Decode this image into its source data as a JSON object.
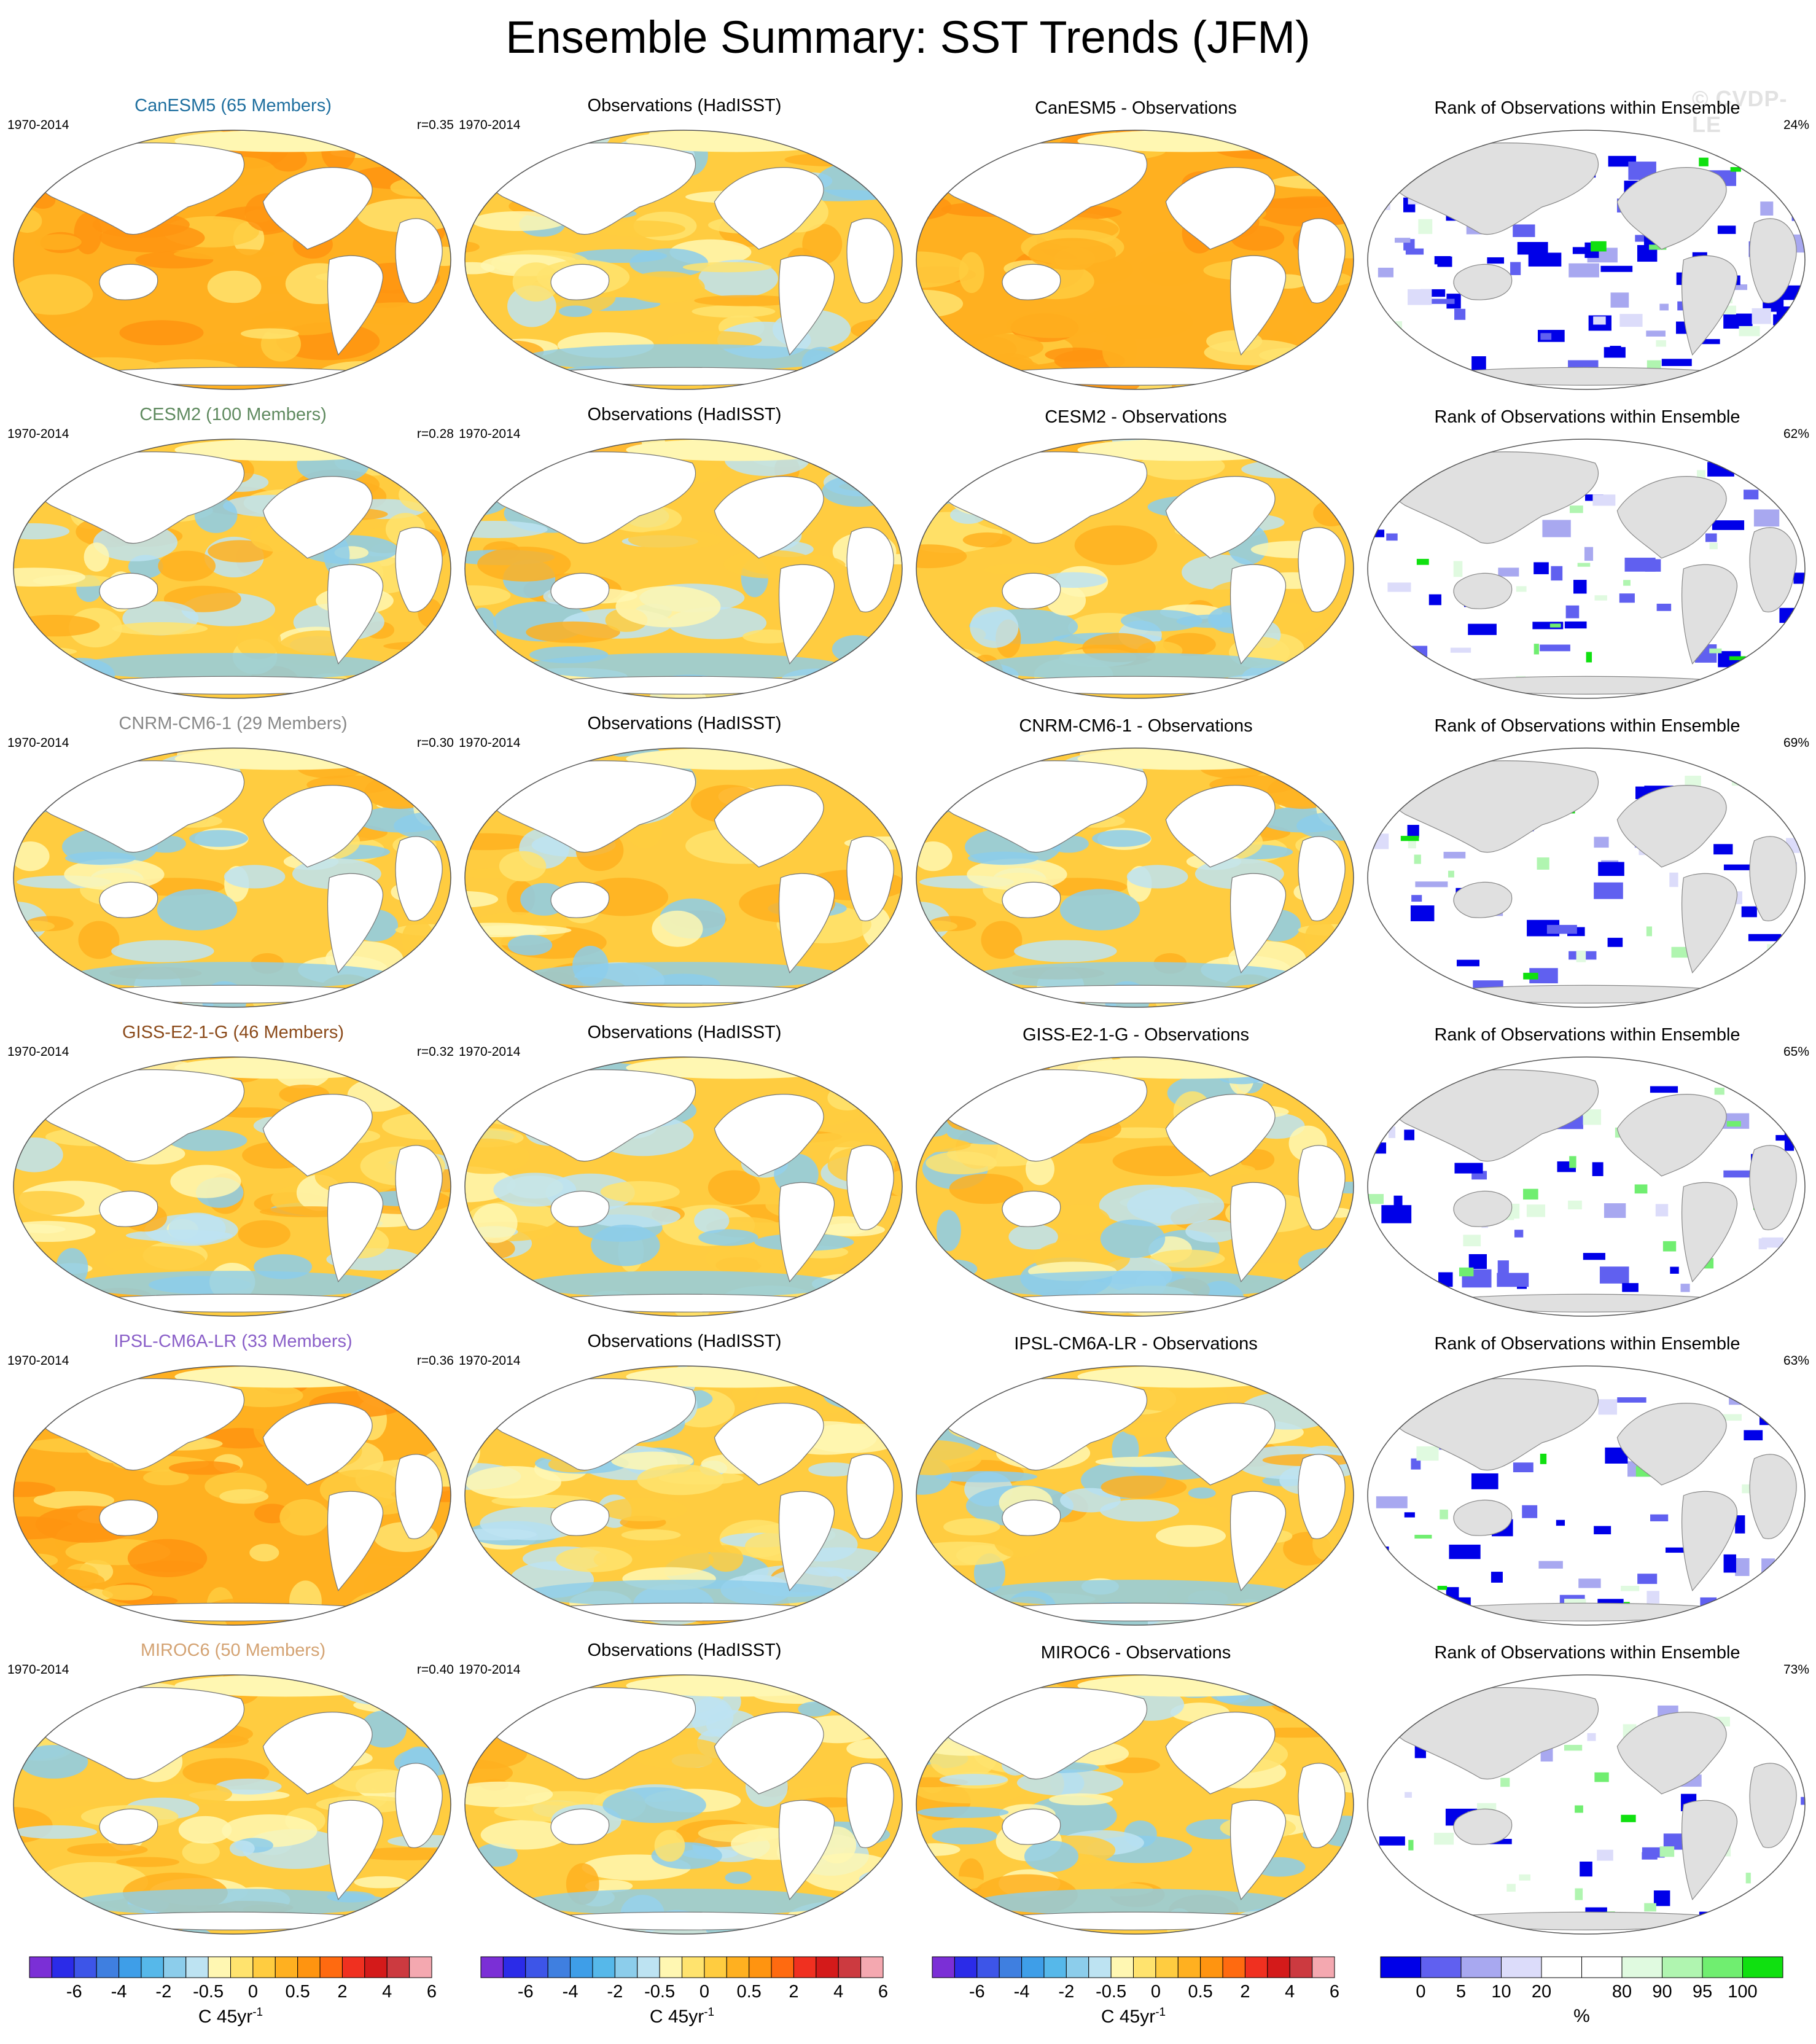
{
  "title": "Ensemble Summary: SST Trends (JFM)",
  "watermark": "© CVDP-LE",
  "period": "1970-2014",
  "rows": [
    {
      "model": "CanESM5 (65 Members)",
      "model_color": "#1f6f9f",
      "r": "r=0.35",
      "obs": "Observations (HadISST)",
      "diff": "CanESM5 - Observations",
      "rank": "Rank of Observations within Ensemble",
      "pct": "24%",
      "model_level": 0.65,
      "diff_level": 0.68,
      "rank_blue": 0.62,
      "rank_green": 0.04
    },
    {
      "model": "CESM2 (100 Members)",
      "model_color": "#5f8a5f",
      "r": "r=0.28",
      "obs": "Observations (HadISST)",
      "diff": "CESM2 - Observations",
      "rank": "Rank of Observations within Ensemble",
      "pct": "62%",
      "model_level": 0.55,
      "diff_level": 0.5,
      "rank_blue": 0.3,
      "rank_green": 0.08
    },
    {
      "model": "CNRM-CM6-1 (29 Members)",
      "model_color": "#888888",
      "r": "r=0.30",
      "obs": "Observations (HadISST)",
      "diff": "CNRM-CM6-1 - Observations",
      "rank": "Rank of Observations within Ensemble",
      "pct": "69%",
      "model_level": 0.58,
      "diff_level": 0.45,
      "rank_blue": 0.22,
      "rank_green": 0.08
    },
    {
      "model": "GISS-E2-1-G (46 Members)",
      "model_color": "#8b4a1a",
      "r": "r=0.32",
      "obs": "Observations (HadISST)",
      "diff": "GISS-E2-1-G - Observations",
      "rank": "Rank of Observations within Ensemble",
      "pct": "65%",
      "model_level": 0.56,
      "diff_level": 0.46,
      "rank_blue": 0.24,
      "rank_green": 0.1
    },
    {
      "model": "IPSL-CM6A-LR (33 Members)",
      "model_color": "#8a5fc8",
      "r": "r=0.36",
      "obs": "Observations (HadISST)",
      "diff": "IPSL-CM6A-LR - Observations",
      "rank": "Rank of Observations within Ensemble",
      "pct": "63%",
      "model_level": 0.66,
      "diff_level": 0.52,
      "rank_blue": 0.28,
      "rank_green": 0.08
    },
    {
      "model": "MIROC6 (50 Members)",
      "model_color": "#d4a373",
      "r": "r=0.40",
      "obs": "Observations (HadISST)",
      "diff": "MIROC6 - Observations",
      "rank": "Rank of Observations within Ensemble",
      "pct": "73%",
      "model_level": 0.48,
      "diff_level": 0.4,
      "rank_blue": 0.18,
      "rank_green": 0.12
    }
  ],
  "trend_colorbar": {
    "labels": [
      "-6",
      "-4",
      "-2",
      "-0.5",
      "0",
      "0.5",
      "2",
      "4",
      "6"
    ],
    "unit": "C 45yr",
    "unit_sup": "-1",
    "colors": [
      "#7b2fd6",
      "#2b2be8",
      "#3d55e8",
      "#3f7fe0",
      "#3e9ee8",
      "#56b8ea",
      "#8ccdeb",
      "#bde3f2",
      "#fff7b2",
      "#ffe36e",
      "#ffcc40",
      "#ffb020",
      "#ff9410",
      "#ff6a10",
      "#f03020",
      "#d41a1a",
      "#cc3a40",
      "#f4a8b0"
    ]
  },
  "rank_colorbar": {
    "labels": [
      "0",
      "5",
      "10",
      "20",
      "80",
      "90",
      "95",
      "100"
    ],
    "unit": "%",
    "colors": [
      "#0000e8",
      "#6060f0",
      "#a8a8f0",
      "#dcdcfa",
      "#ffffff",
      "#ffffff",
      "#e0fae0",
      "#b0f5b0",
      "#70ee70",
      "#10e010"
    ]
  }
}
